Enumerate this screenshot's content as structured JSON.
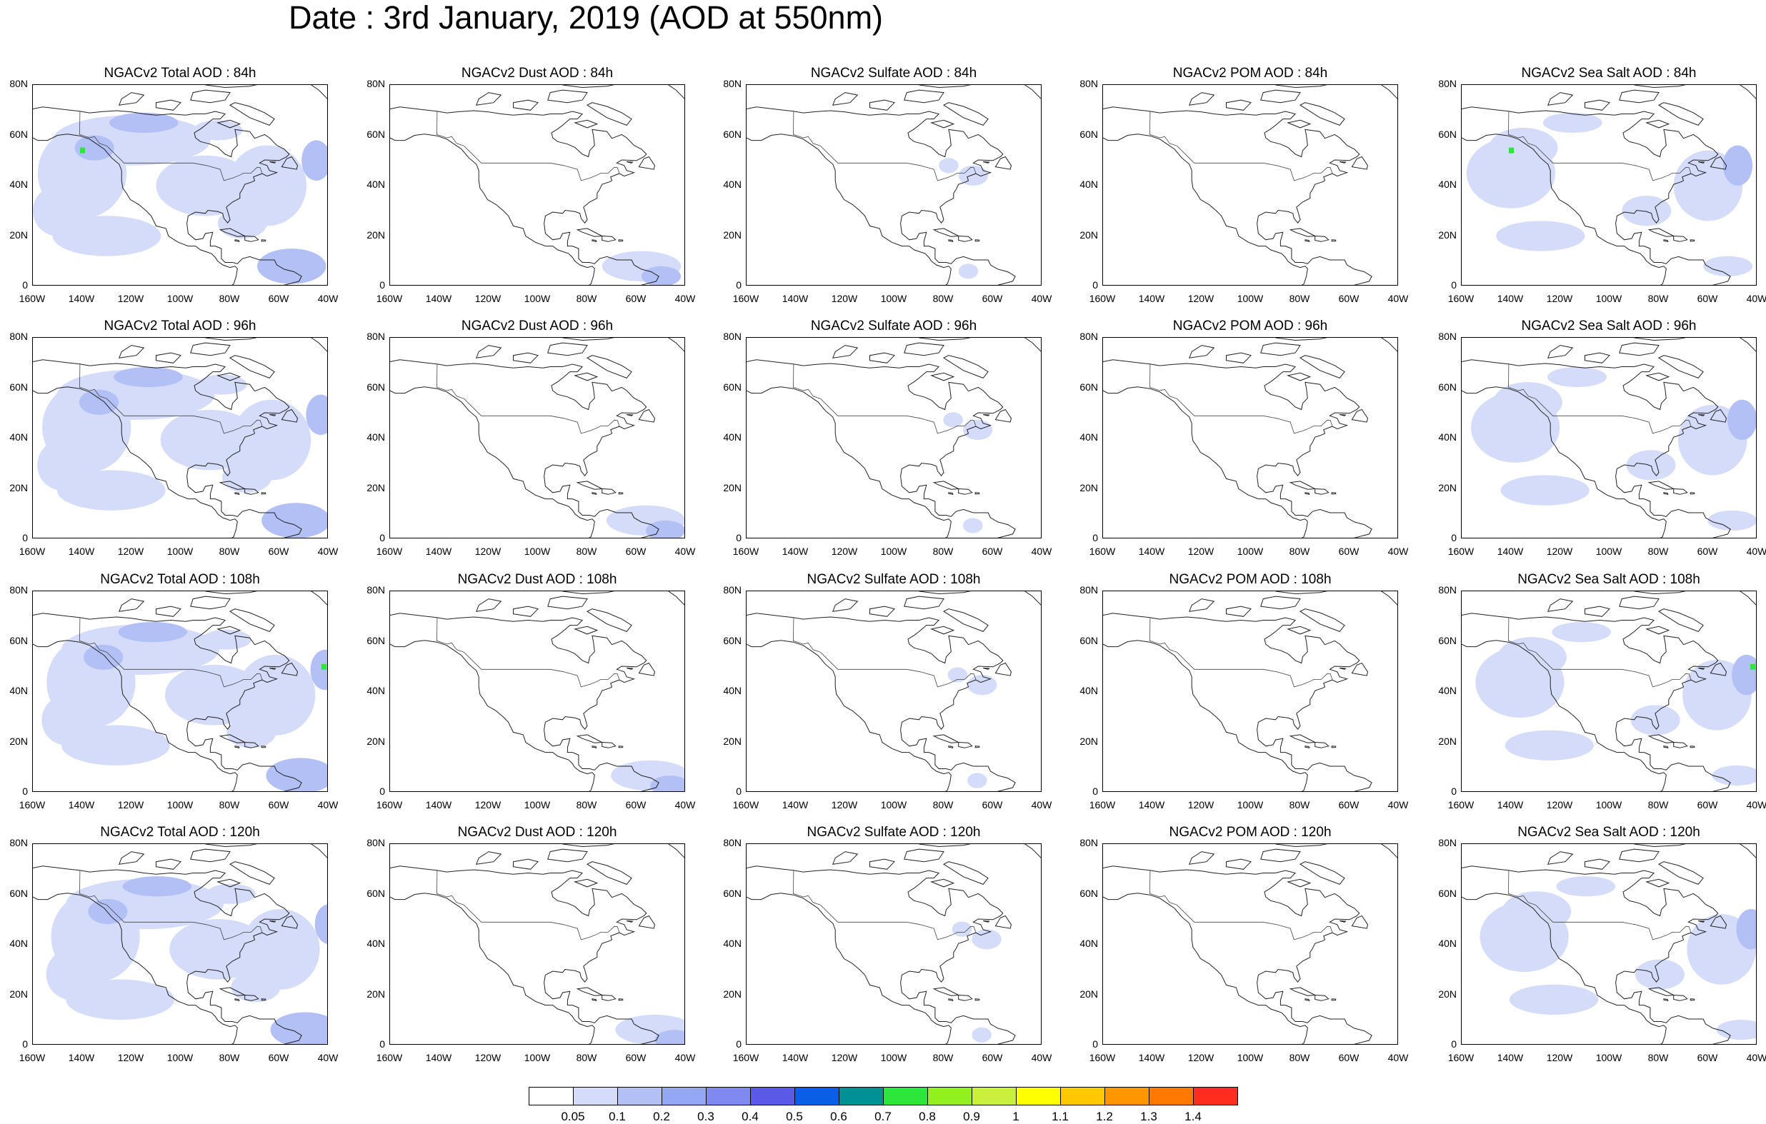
{
  "title": "Date : 3rd January, 2019 (AOD at 550nm)",
  "panels": [
    {
      "title": "NGACv2 Total AOD : 84h",
      "species": "total",
      "hour": 84
    },
    {
      "title": "NGACv2 Dust AOD : 84h",
      "species": "dust",
      "hour": 84
    },
    {
      "title": "NGACv2 Sulfate AOD : 84h",
      "species": "sulfate",
      "hour": 84
    },
    {
      "title": "NGACv2 POM AOD : 84h",
      "species": "pom",
      "hour": 84
    },
    {
      "title": "NGACv2 Sea Salt AOD : 84h",
      "species": "seasalt",
      "hour": 84
    },
    {
      "title": "NGACv2 Total AOD : 96h",
      "species": "total",
      "hour": 96
    },
    {
      "title": "NGACv2 Dust AOD : 96h",
      "species": "dust",
      "hour": 96
    },
    {
      "title": "NGACv2 Sulfate AOD : 96h",
      "species": "sulfate",
      "hour": 96
    },
    {
      "title": "NGACv2 POM AOD : 96h",
      "species": "pom",
      "hour": 96
    },
    {
      "title": "NGACv2 Sea Salt AOD : 96h",
      "species": "seasalt",
      "hour": 96
    },
    {
      "title": "NGACv2 Total AOD : 108h",
      "species": "total",
      "hour": 108
    },
    {
      "title": "NGACv2 Dust AOD : 108h",
      "species": "dust",
      "hour": 108
    },
    {
      "title": "NGACv2 Sulfate AOD : 108h",
      "species": "sulfate",
      "hour": 108
    },
    {
      "title": "NGACv2 POM AOD : 108h",
      "species": "pom",
      "hour": 108
    },
    {
      "title": "NGACv2 Sea Salt AOD : 108h",
      "species": "seasalt",
      "hour": 108
    },
    {
      "title": "NGACv2 Total AOD : 120h",
      "species": "total",
      "hour": 120
    },
    {
      "title": "NGACv2 Dust AOD : 120h",
      "species": "dust",
      "hour": 120
    },
    {
      "title": "NGACv2 Sulfate AOD : 120h",
      "species": "sulfate",
      "hour": 120
    },
    {
      "title": "NGACv2 POM AOD : 120h",
      "species": "pom",
      "hour": 120
    },
    {
      "title": "NGACv2 Sea Salt  AOD : 120h",
      "species": "seasalt",
      "hour": 120
    }
  ],
  "map_extent": {
    "lon": [
      -160,
      -40
    ],
    "lat": [
      0,
      80
    ]
  },
  "lat_ticks": [
    "0",
    "20N",
    "40N",
    "60N",
    "80N"
  ],
  "lon_ticks": [
    "160W",
    "140W",
    "120W",
    "100W",
    "80W",
    "60W",
    "40W"
  ],
  "colorbar": {
    "colors": [
      "#ffffff",
      "#d4dcfa",
      "#b3c0f6",
      "#94a7f4",
      "#7f8af0",
      "#5a5ae6",
      "#0a5fe6",
      "#009196",
      "#2de63c",
      "#91f01e",
      "#c8f03c",
      "#ffff00",
      "#ffc800",
      "#ff9600",
      "#ff7800",
      "#ff2d1e"
    ],
    "labels": [
      "0.05",
      "0.1",
      "0.2",
      "0.3",
      "0.4",
      "0.5",
      "0.6",
      "0.7",
      "0.8",
      "0.9",
      "1",
      "1.1",
      "1.2",
      "1.3",
      "1.4"
    ]
  }
}
